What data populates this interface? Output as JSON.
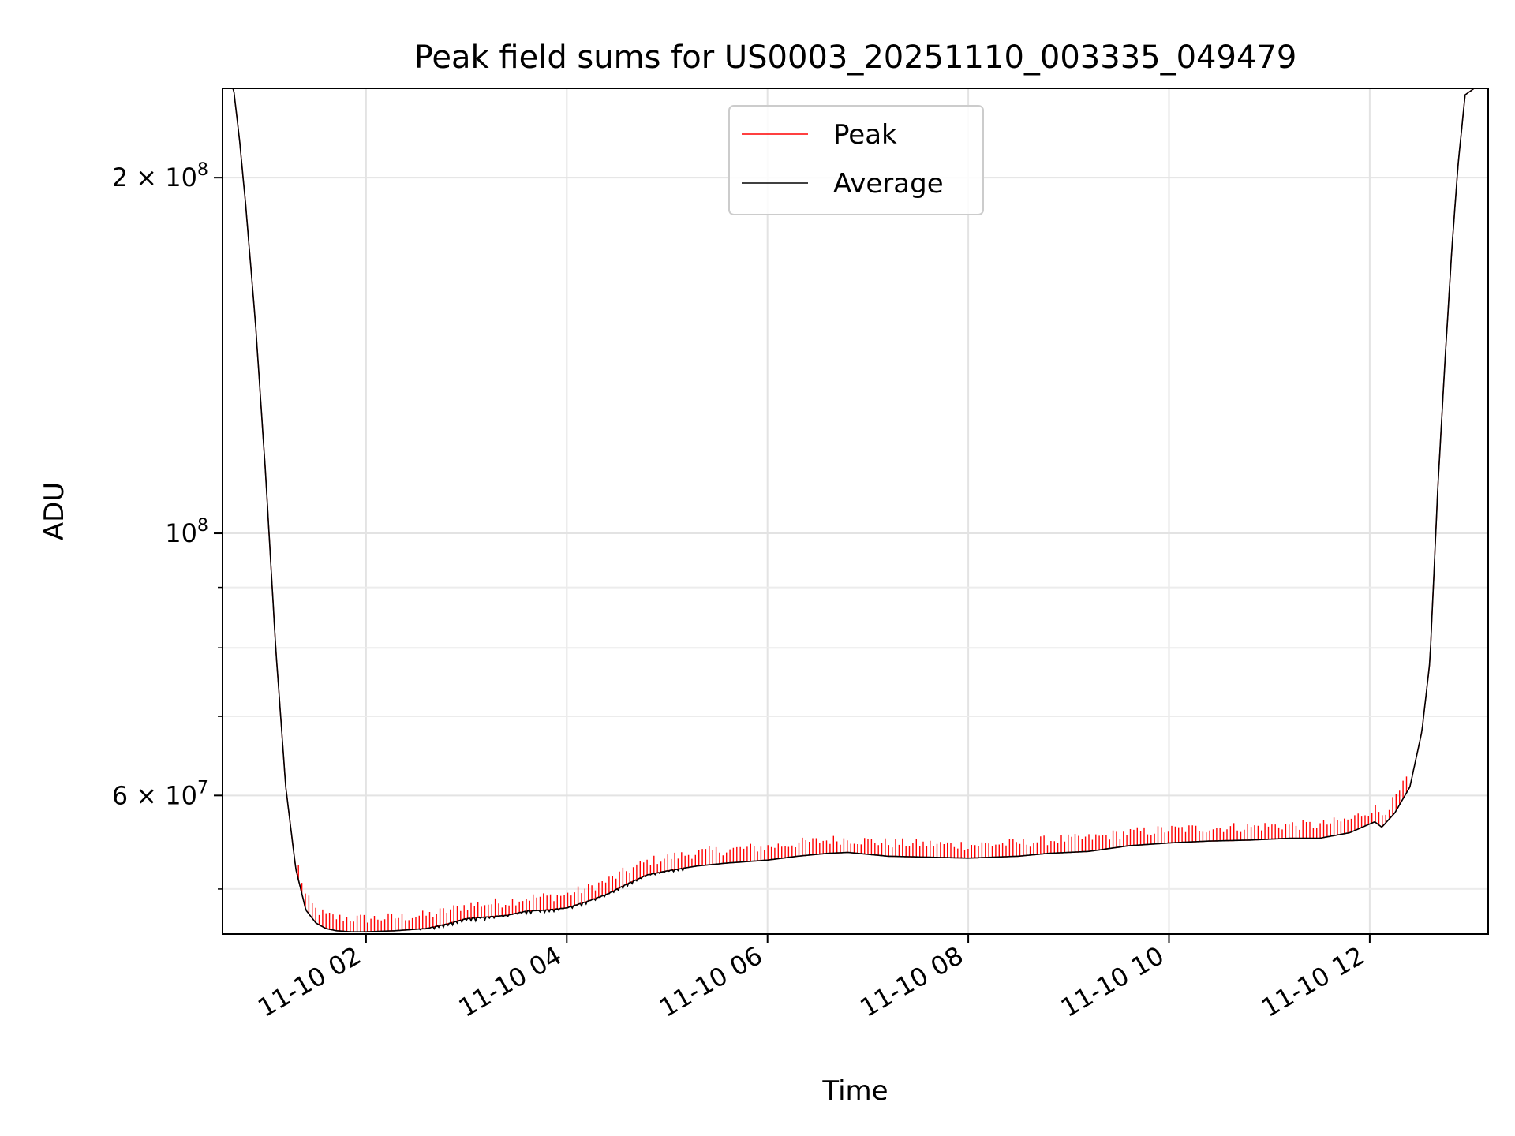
{
  "chart_data": {
    "type": "line",
    "title": "Peak field sums for US0003_20251110_003335_049479",
    "xlabel": "Time",
    "ylabel": "ADU",
    "yscale": "log",
    "grid": true,
    "legend_position": "upper-center",
    "x_unit": "hours since 11-10 00:00",
    "xlim": [
      0.57,
      13.18
    ],
    "ylim": [
      45800000,
      238000000
    ],
    "x_ticks": [
      {
        "value": 2,
        "label": "11-10 02"
      },
      {
        "value": 4,
        "label": "11-10 04"
      },
      {
        "value": 6,
        "label": "11-10 06"
      },
      {
        "value": 8,
        "label": "11-10 08"
      },
      {
        "value": 10,
        "label": "11-10 10"
      },
      {
        "value": 12,
        "label": "11-10 12"
      }
    ],
    "y_major_ticks": [
      {
        "value": 200000000,
        "label_base": "2 × 10",
        "label_exp": "8"
      },
      {
        "value": 100000000,
        "label_base": "10",
        "label_exp": "8"
      },
      {
        "value": 60000000,
        "label_base": "6 × 10",
        "label_exp": "7"
      }
    ],
    "y_minor_grid": [
      50000000,
      70000000,
      80000000,
      90000000
    ],
    "series": [
      {
        "name": "Peak",
        "color": "#ff0000",
        "spike_offset_pct": 2.6,
        "spike_every": 3
      },
      {
        "name": "Average",
        "color": "#000000",
        "points": [
          [
            0.57,
            240000000
          ],
          [
            0.68,
            238000000
          ],
          [
            0.74,
            215000000
          ],
          [
            0.8,
            190000000
          ],
          [
            0.9,
            150000000
          ],
          [
            1.0,
            112000000
          ],
          [
            1.1,
            80000000
          ],
          [
            1.2,
            61000000
          ],
          [
            1.3,
            52000000
          ],
          [
            1.4,
            48000000
          ],
          [
            1.5,
            46800000
          ],
          [
            1.6,
            46300000
          ],
          [
            1.7,
            46100000
          ],
          [
            1.85,
            46000000
          ],
          [
            2.0,
            46000000
          ],
          [
            2.3,
            46100000
          ],
          [
            2.6,
            46300000
          ],
          [
            2.8,
            46700000
          ],
          [
            3.0,
            47200000
          ],
          [
            3.4,
            47500000
          ],
          [
            3.6,
            47900000
          ],
          [
            3.8,
            48000000
          ],
          [
            4.0,
            48200000
          ],
          [
            4.2,
            48800000
          ],
          [
            4.4,
            49500000
          ],
          [
            4.6,
            50500000
          ],
          [
            4.8,
            51400000
          ],
          [
            5.0,
            51800000
          ],
          [
            5.3,
            52300000
          ],
          [
            5.6,
            52600000
          ],
          [
            6.0,
            52900000
          ],
          [
            6.3,
            53300000
          ],
          [
            6.6,
            53600000
          ],
          [
            6.8,
            53700000
          ],
          [
            7.2,
            53300000
          ],
          [
            7.6,
            53200000
          ],
          [
            8.0,
            53100000
          ],
          [
            8.5,
            53300000
          ],
          [
            8.8,
            53600000
          ],
          [
            9.2,
            53800000
          ],
          [
            9.6,
            54400000
          ],
          [
            10.0,
            54700000
          ],
          [
            10.4,
            54900000
          ],
          [
            10.8,
            55000000
          ],
          [
            11.2,
            55200000
          ],
          [
            11.5,
            55200000
          ],
          [
            11.8,
            55800000
          ],
          [
            12.05,
            57000000
          ],
          [
            12.12,
            56400000
          ],
          [
            12.25,
            58000000
          ],
          [
            12.4,
            61000000
          ],
          [
            12.52,
            68000000
          ],
          [
            12.6,
            78000000
          ],
          [
            12.68,
            110000000
          ],
          [
            12.75,
            140000000
          ],
          [
            12.82,
            175000000
          ],
          [
            12.88,
            205000000
          ],
          [
            12.95,
            235000000
          ],
          [
            13.1,
            240000000
          ],
          [
            13.18,
            240000000
          ]
        ]
      }
    ]
  }
}
